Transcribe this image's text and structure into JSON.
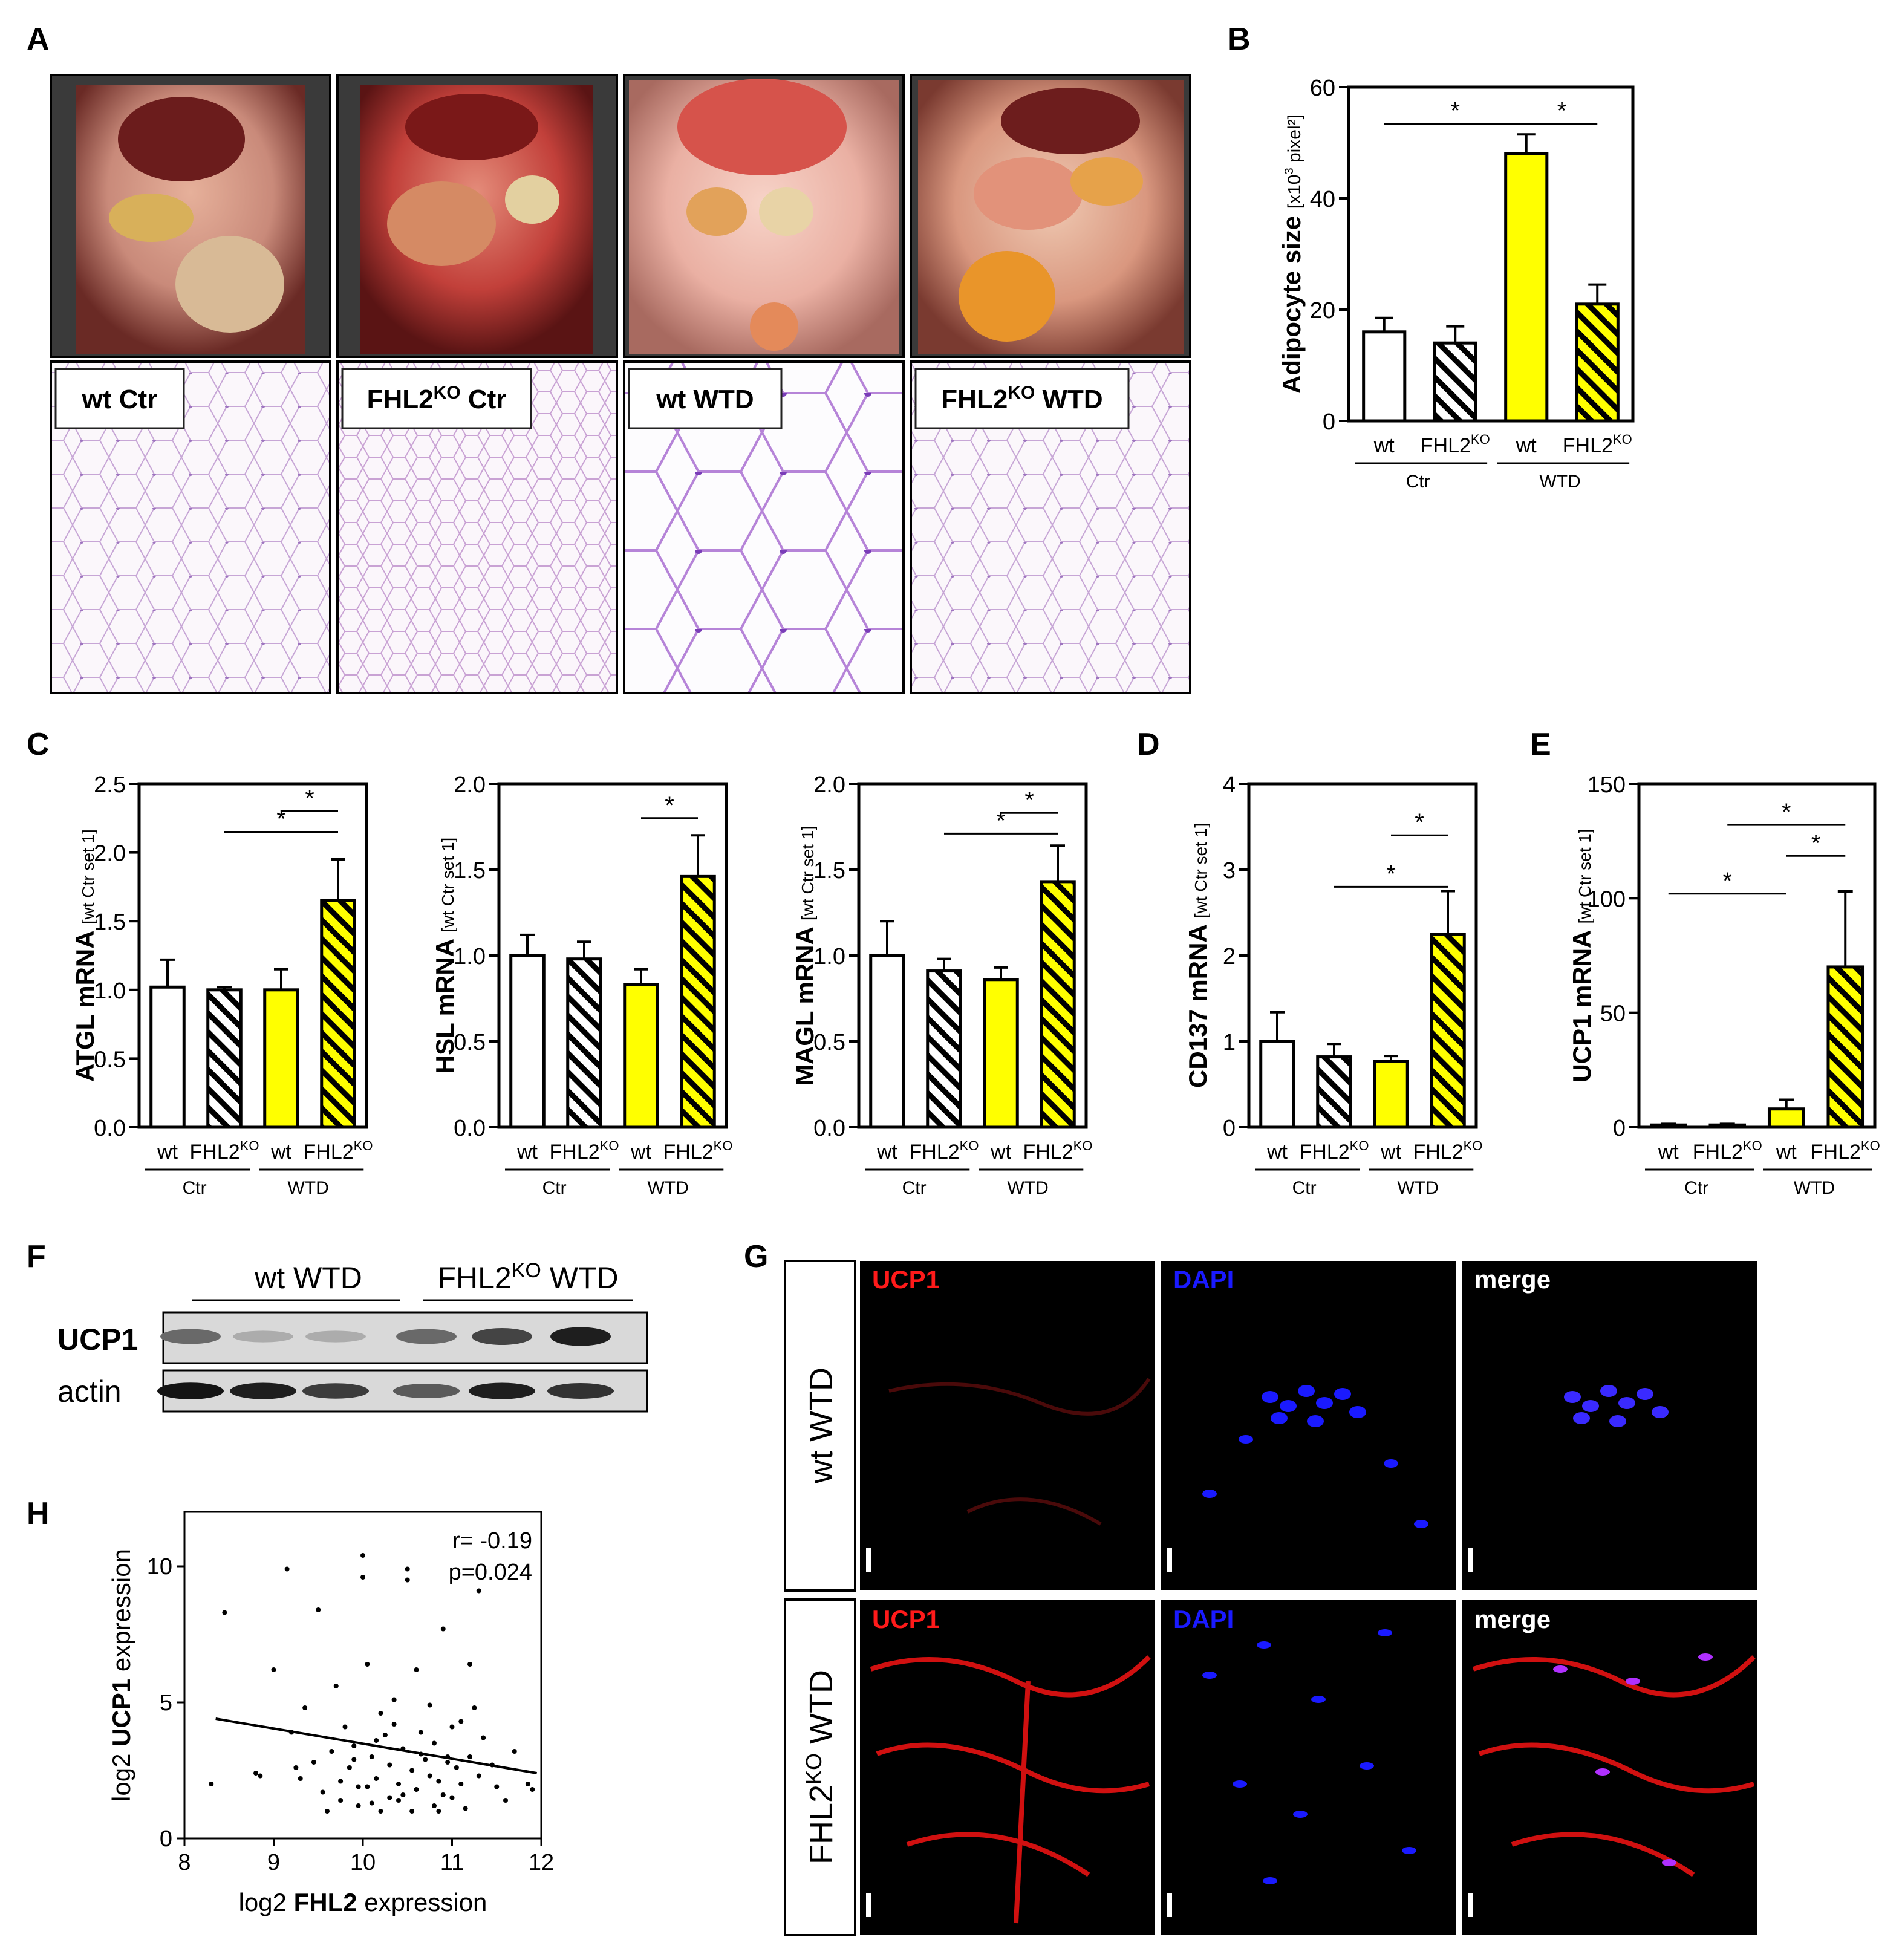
{
  "panel_labels": {
    "A": "A",
    "B": "B",
    "C": "C",
    "D": "D",
    "E": "E",
    "F": "F",
    "G": "G",
    "H": "H"
  },
  "panel_a": {
    "labels": [
      {
        "main": "wt Ctr",
        "sup": ""
      },
      {
        "main": "FHL2",
        "sup": "KO",
        "tail": " Ctr"
      },
      {
        "main": "wt WTD",
        "sup": ""
      },
      {
        "main": "FHL2",
        "sup": "KO",
        "tail": " WTD"
      }
    ]
  },
  "common": {
    "groups": [
      "Ctr",
      "WTD"
    ],
    "wt": "wt",
    "ko_main": "FHL2",
    "ko_sup": "KO",
    "ylabel_suffix": "[wt Ctr set 1]",
    "asterisk": "*"
  },
  "colors": {
    "wt_ctr": "#ffffff",
    "ko_ctr_hatch": "#000000",
    "wt_wtd": "#ffff00",
    "ko_wtd_hatch": "#ffff00",
    "blot_bg": "#d9d9d9",
    "ucp1": "#ff1a1a",
    "dapi": "#1a1aff",
    "merge": "#ffffff"
  },
  "chart_data": [
    {
      "id": "B",
      "type": "bar",
      "ylabel_main": "Adipocyte size",
      "ylabel_unit": "[x10",
      "ylabel_unit_sup": "3",
      "ylabel_unit_tail": " pixel²]",
      "ylim": [
        0,
        60
      ],
      "yticks": [
        "0",
        "20",
        "40",
        "60"
      ],
      "values": [
        16,
        14,
        48,
        21
      ],
      "errors": [
        2.5,
        3,
        3.5,
        3.5
      ]
    },
    {
      "id": "C1",
      "type": "bar",
      "ylabel_main": "ATGL mRNA",
      "ylim": [
        0,
        2.5
      ],
      "yticks": [
        "0.0",
        "0.5",
        "1.0",
        "1.5",
        "2.0",
        "2.5"
      ],
      "values": [
        1.02,
        1.0,
        1.0,
        1.65
      ],
      "errors": [
        0.2,
        0.02,
        0.15,
        0.3
      ]
    },
    {
      "id": "C2",
      "type": "bar",
      "ylabel_main": "HSL mRNA",
      "ylim": [
        0,
        2.0
      ],
      "yticks": [
        "0.0",
        "0.5",
        "1.0",
        "1.5",
        "2.0"
      ],
      "values": [
        1.0,
        0.98,
        0.83,
        1.46
      ],
      "errors": [
        0.12,
        0.1,
        0.09,
        0.24
      ]
    },
    {
      "id": "C3",
      "type": "bar",
      "ylabel_main": "MAGL mRNA",
      "ylim": [
        0,
        2.0
      ],
      "yticks": [
        "0.0",
        "0.5",
        "1.0",
        "1.5",
        "2.0"
      ],
      "values": [
        1.0,
        0.91,
        0.86,
        1.43
      ],
      "errors": [
        0.2,
        0.07,
        0.07,
        0.21
      ]
    },
    {
      "id": "D",
      "type": "bar",
      "ylabel_main": "CD137 mRNA",
      "ylim": [
        0,
        4
      ],
      "yticks": [
        "0",
        "1",
        "2",
        "3",
        "4"
      ],
      "values": [
        1.0,
        0.82,
        0.77,
        2.25
      ],
      "errors": [
        0.34,
        0.15,
        0.06,
        0.5
      ]
    },
    {
      "id": "E",
      "type": "bar",
      "ylabel_main": "UCP1 mRNA",
      "ylim": [
        0,
        150
      ],
      "yticks": [
        "0",
        "50",
        "100",
        "150"
      ],
      "values": [
        1,
        1,
        8,
        70
      ],
      "errors": [
        0.5,
        0.5,
        4,
        33
      ]
    },
    {
      "id": "H",
      "type": "scatter",
      "xlabel_pre": "log2 ",
      "xlabel_bold": "FHL2",
      "xlabel_post": " expression",
      "ylabel_pre": "log2 ",
      "ylabel_bold": "UCP1",
      "ylabel_post": " expression",
      "xlim": [
        8,
        12
      ],
      "ylim": [
        0,
        12
      ],
      "xticks": [
        "8",
        "9",
        "10",
        "11",
        "12"
      ],
      "yticks": [
        "0",
        "5",
        "10"
      ],
      "r_text": "r= -0.19",
      "p_text": "p=0.024",
      "fit": {
        "x": [
          8.35,
          11.95
        ],
        "y": [
          4.4,
          2.4
        ]
      },
      "points": [
        [
          8.3,
          2.0
        ],
        [
          8.45,
          8.3
        ],
        [
          8.8,
          2.4
        ],
        [
          8.85,
          2.3
        ],
        [
          9.0,
          6.2
        ],
        [
          9.15,
          9.9
        ],
        [
          9.2,
          3.9
        ],
        [
          9.25,
          2.6
        ],
        [
          9.3,
          2.2
        ],
        [
          9.35,
          4.8
        ],
        [
          9.45,
          2.8
        ],
        [
          9.5,
          8.4
        ],
        [
          9.55,
          1.7
        ],
        [
          9.6,
          1.0
        ],
        [
          9.65,
          3.2
        ],
        [
          9.7,
          5.6
        ],
        [
          9.75,
          2.1
        ],
        [
          9.8,
          4.1
        ],
        [
          9.85,
          2.6
        ],
        [
          9.9,
          3.4
        ],
        [
          9.95,
          1.9
        ],
        [
          10.0,
          10.4
        ],
        [
          10.0,
          9.6
        ],
        [
          10.05,
          6.4
        ],
        [
          10.1,
          3.0
        ],
        [
          10.1,
          1.3
        ],
        [
          10.15,
          2.2
        ],
        [
          10.2,
          4.6
        ],
        [
          10.25,
          3.8
        ],
        [
          10.3,
          2.7
        ],
        [
          10.3,
          1.5
        ],
        [
          10.35,
          5.1
        ],
        [
          10.4,
          2.0
        ],
        [
          10.45,
          3.3
        ],
        [
          10.5,
          9.9
        ],
        [
          10.5,
          9.5
        ],
        [
          10.55,
          2.5
        ],
        [
          10.6,
          6.2
        ],
        [
          10.6,
          1.8
        ],
        [
          10.65,
          3.9
        ],
        [
          10.7,
          2.9
        ],
        [
          10.75,
          4.9
        ],
        [
          10.8,
          1.2
        ],
        [
          10.8,
          3.5
        ],
        [
          10.85,
          2.1
        ],
        [
          10.9,
          7.7
        ],
        [
          10.95,
          3.0
        ],
        [
          11.0,
          4.1
        ],
        [
          11.0,
          1.5
        ],
        [
          11.05,
          2.6
        ],
        [
          11.1,
          4.3
        ],
        [
          11.15,
          1.1
        ],
        [
          11.2,
          6.4
        ],
        [
          11.25,
          4.8
        ],
        [
          11.3,
          9.1
        ],
        [
          11.3,
          2.3
        ],
        [
          11.35,
          3.7
        ],
        [
          11.45,
          2.7
        ],
        [
          11.5,
          1.9
        ],
        [
          11.6,
          1.4
        ],
        [
          11.7,
          3.2
        ],
        [
          11.85,
          2.0
        ],
        [
          11.9,
          1.8
        ],
        [
          10.05,
          1.9
        ],
        [
          10.2,
          1.0
        ],
        [
          9.95,
          1.2
        ],
        [
          10.4,
          1.4
        ],
        [
          10.55,
          1.0
        ],
        [
          10.75,
          2.3
        ],
        [
          10.9,
          1.6
        ],
        [
          11.1,
          2.0
        ],
        [
          10.65,
          3.1
        ],
        [
          10.35,
          4.2
        ],
        [
          9.9,
          2.9
        ],
        [
          9.75,
          1.4
        ],
        [
          10.15,
          3.6
        ],
        [
          11.2,
          3.0
        ],
        [
          10.85,
          1.0
        ],
        [
          10.45,
          1.6
        ],
        [
          10.95,
          2.8
        ]
      ]
    }
  ],
  "panel_f": {
    "group_wt": "wt WTD",
    "group_ko_main": "FHL2",
    "group_ko_sup": "KO",
    "group_ko_tail": " WTD",
    "row1": "UCP1",
    "row2": "actin",
    "ucp1_intensity": [
      0.55,
      0.2,
      0.2,
      0.55,
      0.75,
      0.95
    ],
    "actin_intensity": [
      0.95,
      0.9,
      0.75,
      0.6,
      0.9,
      0.8
    ]
  },
  "panel_g": {
    "row1": "wt WTD",
    "row2_main": "FHL2",
    "row2_sup": "KO",
    "row2_tail": " WTD",
    "channels": [
      "UCP1",
      "DAPI",
      "merge"
    ]
  }
}
